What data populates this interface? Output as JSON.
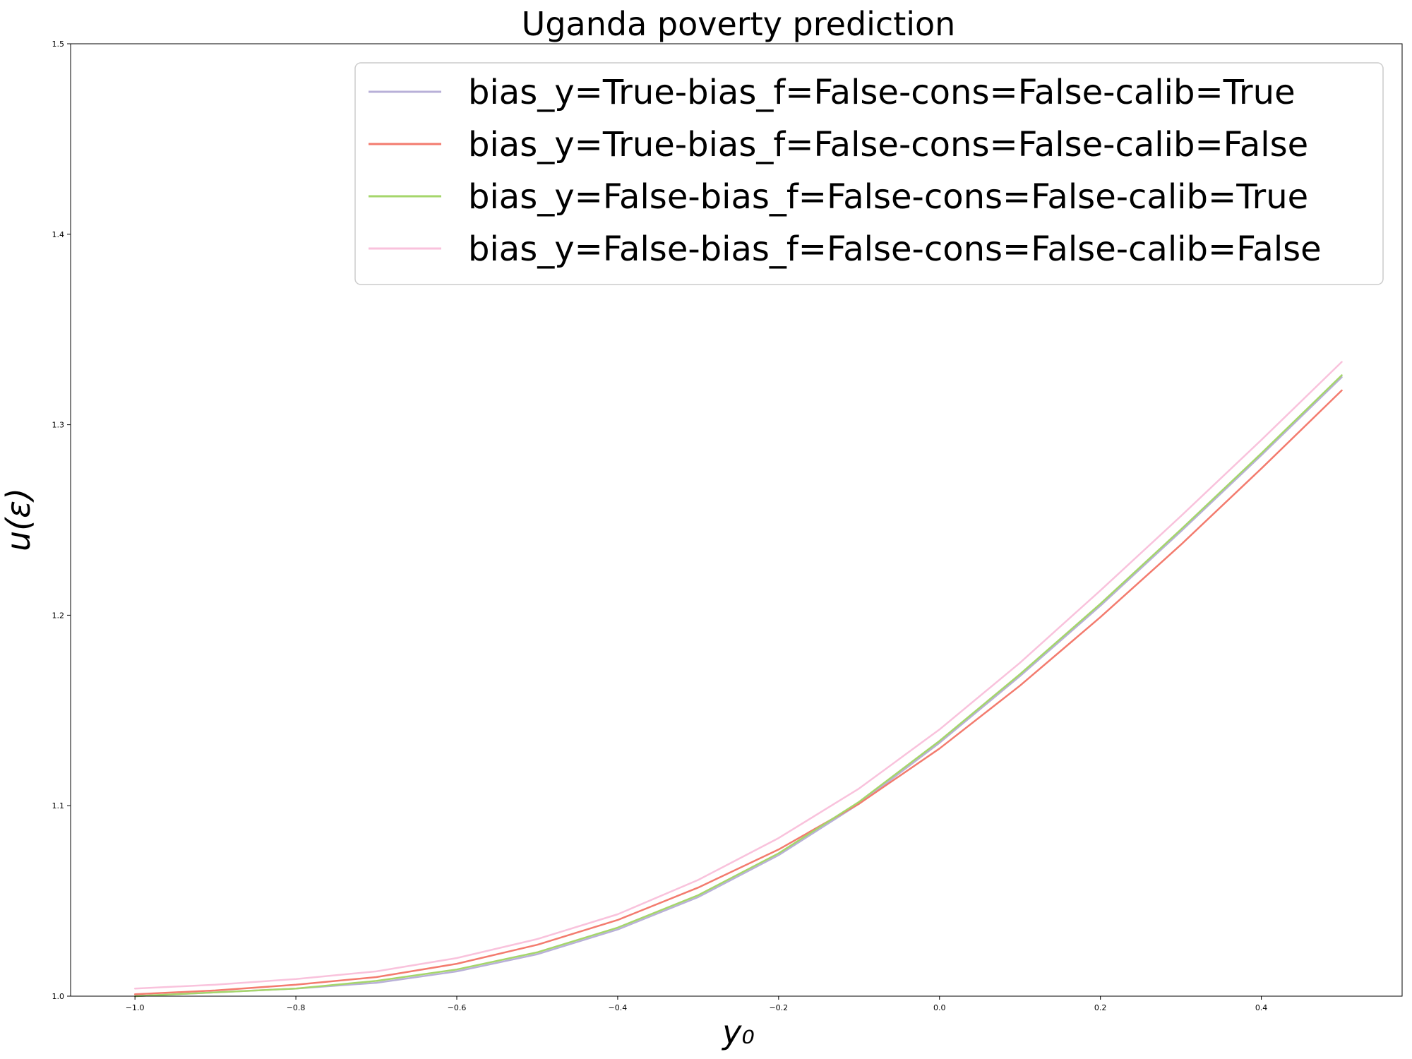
{
  "chart_data": {
    "type": "line",
    "title": "Uganda poverty prediction",
    "xlabel": "y₀",
    "ylabel": "u(ε)",
    "xlim": [
      -1.08,
      0.575
    ],
    "ylim": [
      1.0,
      1.5
    ],
    "xticks": [
      -1.0,
      -0.8,
      -0.6,
      -0.4,
      -0.2,
      0.0,
      0.2,
      0.4
    ],
    "xtick_labels": [
      "−1.0",
      "−0.8",
      "−0.6",
      "−0.4",
      "−0.2",
      "0.0",
      "0.2",
      "0.4"
    ],
    "yticks": [
      1.0,
      1.1,
      1.2,
      1.3,
      1.4,
      1.5
    ],
    "ytick_labels": [
      "1.0",
      "1.1",
      "1.2",
      "1.3",
      "1.4",
      "1.5"
    ],
    "grid": false,
    "legend_position": "top-right",
    "x": [
      -1.0,
      -0.9,
      -0.8,
      -0.7,
      -0.6,
      -0.5,
      -0.4,
      -0.3,
      -0.2,
      -0.1,
      0.0,
      0.1,
      0.2,
      0.3,
      0.4,
      0.5
    ],
    "series": [
      {
        "name": "bias_y=True-bias_f=False-cons=False-calib=True",
        "color": "#b8b0d8",
        "values": [
          1.0,
          1.002,
          1.004,
          1.007,
          1.013,
          1.022,
          1.035,
          1.052,
          1.074,
          1.101,
          1.133,
          1.168,
          1.205,
          1.244,
          1.284,
          1.325
        ]
      },
      {
        "name": "bias_y=True-bias_f=False-cons=False-calib=False",
        "color": "#f37b6e",
        "values": [
          1.001,
          1.003,
          1.006,
          1.01,
          1.017,
          1.027,
          1.04,
          1.057,
          1.077,
          1.101,
          1.13,
          1.163,
          1.199,
          1.237,
          1.277,
          1.318
        ]
      },
      {
        "name": "bias_y=False-bias_f=False-cons=False-calib=True",
        "color": "#a5d66b",
        "values": [
          1.0,
          1.002,
          1.004,
          1.008,
          1.014,
          1.023,
          1.036,
          1.053,
          1.075,
          1.102,
          1.134,
          1.169,
          1.206,
          1.245,
          1.285,
          1.326
        ]
      },
      {
        "name": "bias_y=False-bias_f=False-cons=False-calib=False",
        "color": "#f9c2dc",
        "values": [
          1.004,
          1.006,
          1.009,
          1.013,
          1.02,
          1.03,
          1.043,
          1.061,
          1.083,
          1.109,
          1.14,
          1.175,
          1.213,
          1.252,
          1.292,
          1.333
        ]
      }
    ]
  }
}
